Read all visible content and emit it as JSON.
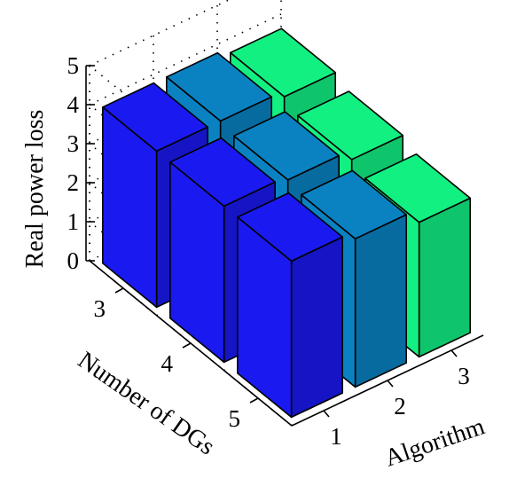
{
  "chart_data": {
    "type": "bar3d",
    "title": "",
    "zlabel": "Real power loss",
    "xlabel": "Algorithm",
    "ylabel": "Number of DGs",
    "algorithm_ticks": [
      "1",
      "2",
      "3"
    ],
    "dg_ticks": [
      "3",
      "4",
      "5"
    ],
    "z_ticks": [
      "0",
      "1",
      "2",
      "3",
      "4",
      "5"
    ],
    "zlim": [
      0,
      5
    ],
    "grid": true,
    "series": [
      {
        "name": "1",
        "color": "#1a1af0",
        "values": [
          4.0,
          4.0,
          4.0
        ]
      },
      {
        "name": "2",
        "color": "#0a82c2",
        "values": [
          4.0,
          3.9,
          3.8
        ]
      },
      {
        "name": "3",
        "color": "#12f082",
        "values": [
          3.85,
          3.65,
          3.45
        ]
      }
    ]
  }
}
